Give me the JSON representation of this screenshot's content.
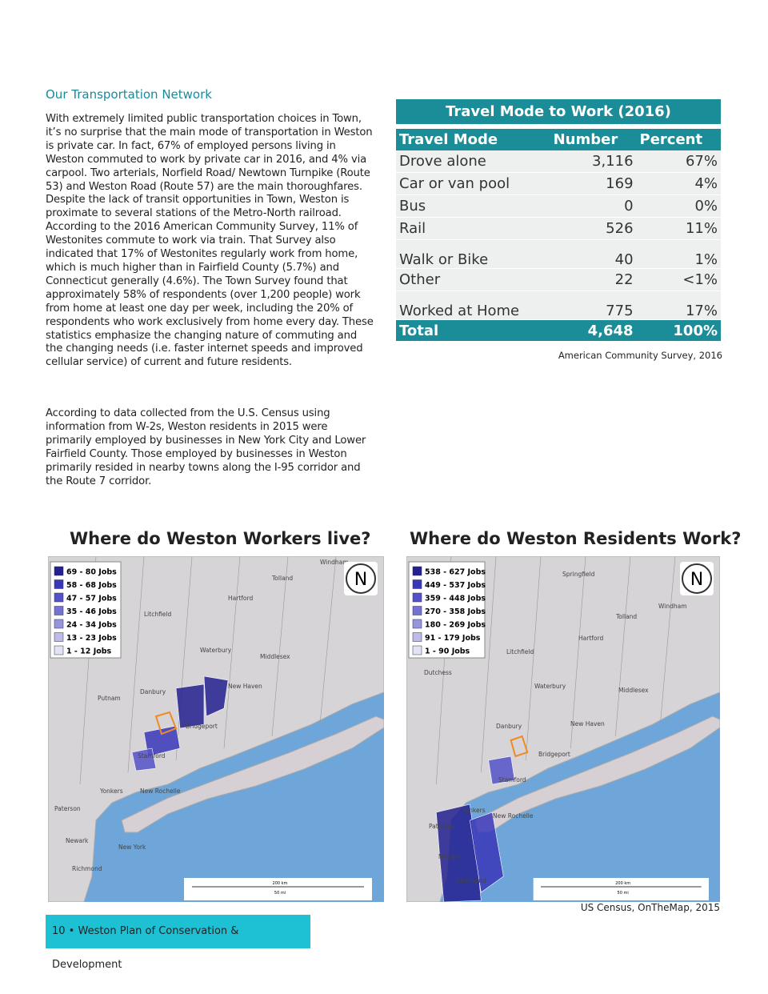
{
  "heading": "Our Transportation Network",
  "paragraphs": [
    "With extremely limited public transportation choices in Town, it’s no surprise that the main mode of transportation in Weston is private car.  In fact, 67% of employed persons living in Weston commuted to work by private car in 2016, and 4% via carpool.  Two arterials, Norfield Road/ Newtown Turnpike (Route 53) and Weston Road (Route 57) are the main thoroughfares.  Despite the lack of transit opportunities in Town, Weston is proximate to several stations of the Metro-North railroad.  According to the 2016 American Community Survey, 11% of Westonites commute to work via train.  That Survey also indicated that 17% of Westonites regularly work from home, which is much higher than in Fairfield County (5.7%) and Connecticut generally (4.6%).  The Town Survey found that approximately 58% of respondents (over 1,200 people) work from home at least one day per week, including the 20% of respondents who work exclusively from home every day.  These statistics emphasize the changing nature of commuting and the changing needs (i.e. faster internet speeds and improved cellular service) of current and future residents.",
    "According to data collected from the U.S. Census using information from W-2s, Weston residents in 2015 were primarily employed by businesses in New York City and Lower Fairfield County.  Those employed by businesses in Weston primarily resided in nearby towns along the I-95 corridor and the Route 7 corridor."
  ],
  "table": {
    "title": "Travel Mode to Work (2016)",
    "columns": [
      "Travel Mode",
      "Number",
      "Percent"
    ],
    "rows": [
      [
        "Drove alone",
        "3,116",
        "67%"
      ],
      [
        "Car or van pool",
        "169",
        "4%"
      ],
      [
        "Bus",
        "0",
        "0%"
      ],
      [
        "Rail",
        "526",
        "11%"
      ],
      [
        "Walk or Bike",
        "40",
        "1%"
      ],
      [
        "Other",
        "22",
        "<1%"
      ],
      [
        "Worked at Home",
        "775",
        "17%"
      ]
    ],
    "total": [
      "Total",
      "4,648",
      "100%"
    ],
    "source": "American Community Survey, 2016"
  },
  "maps": [
    {
      "title": "Where do Weston Workers live?",
      "legend": [
        "69 - 80 Jobs",
        "58 - 68 Jobs",
        "47 - 57 Jobs",
        "35 - 46 Jobs",
        "24 - 34 Jobs",
        "13 - 23 Jobs",
        "1 - 12 Jobs"
      ],
      "places": [
        "Windham",
        "Tolland",
        "Hartford",
        "Litchfield",
        "Waterbury",
        "Middlesex",
        "New Haven",
        "Danbury",
        "Putnam",
        "Bridgeport",
        "Stamford",
        "Yonkers",
        "New Rochelle",
        "Paterson",
        "Newark",
        "New York",
        "Richmond"
      ]
    },
    {
      "title": "Where do Weston Residents Work?",
      "legend": [
        "538 - 627 Jobs",
        "449 - 537 Jobs",
        "359 - 448 Jobs",
        "270 - 358 Jobs",
        "180 - 269 Jobs",
        "91 - 179 Jobs",
        "1 - 90 Jobs"
      ],
      "places": [
        "Springfield",
        "Windham",
        "Tolland",
        "Hartford",
        "Litchfield",
        "Waterbury",
        "Middlesex",
        "Dutchess",
        "New Haven",
        "Danbury",
        "Bridgeport",
        "Stamford",
        "Yonkers",
        "New Rochelle",
        "Paterson",
        "Newark",
        "Richmond"
      ]
    }
  ],
  "map_labels": {
    "north": "N",
    "scale_km": "200 km",
    "scale_mi": "50 mi"
  },
  "maps_source": "US Census, OnTheMap, 2015",
  "footer": "10 • Weston Plan of Conservation & Development"
}
